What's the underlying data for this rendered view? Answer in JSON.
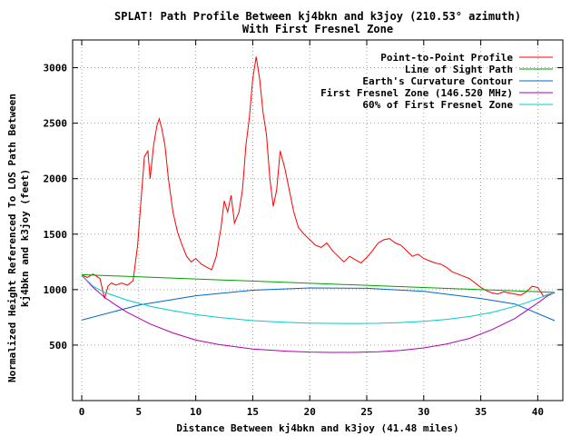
{
  "chart_data": {
    "type": "line",
    "title": "SPLAT! Path Profile Between kj4bkn and k3joy (210.53° azimuth)",
    "subtitle": "With First Fresnel Zone",
    "xlabel": "Distance Between kj4bkn and k3joy (41.48 miles)",
    "ylabel_lines": [
      "Normalized Height Referenced To LOS Path Between",
      "kj4bkn and k3joy (feet)"
    ],
    "xlim": [
      -0.8,
      42.2
    ],
    "ylim": [
      0,
      3250
    ],
    "xticks": [
      0,
      5,
      10,
      15,
      20,
      25,
      30,
      35,
      40
    ],
    "yticks": [
      500,
      1000,
      1500,
      2000,
      2500,
      3000
    ],
    "grid": true,
    "legend": "top-right",
    "series": [
      {
        "name": "Point-to-Point Profile",
        "color": "#ff0000",
        "points": [
          [
            0,
            1130
          ],
          [
            0.5,
            1110
          ],
          [
            1,
            1140
          ],
          [
            1.3,
            1120
          ],
          [
            1.6,
            1100
          ],
          [
            2,
            920
          ],
          [
            2.3,
            1030
          ],
          [
            2.6,
            1060
          ],
          [
            3,
            1040
          ],
          [
            3.5,
            1060
          ],
          [
            4,
            1040
          ],
          [
            4.5,
            1080
          ],
          [
            4.9,
            1400
          ],
          [
            5.2,
            1800
          ],
          [
            5.5,
            2200
          ],
          [
            5.8,
            2250
          ],
          [
            6,
            2000
          ],
          [
            6.3,
            2300
          ],
          [
            6.6,
            2480
          ],
          [
            6.8,
            2540
          ],
          [
            7,
            2460
          ],
          [
            7.3,
            2300
          ],
          [
            7.6,
            2000
          ],
          [
            8,
            1700
          ],
          [
            8.4,
            1520
          ],
          [
            8.8,
            1400
          ],
          [
            9.2,
            1300
          ],
          [
            9.6,
            1250
          ],
          [
            10,
            1280
          ],
          [
            10.5,
            1230
          ],
          [
            11,
            1200
          ],
          [
            11.4,
            1180
          ],
          [
            11.8,
            1300
          ],
          [
            12.2,
            1550
          ],
          [
            12.5,
            1800
          ],
          [
            12.8,
            1700
          ],
          [
            13.1,
            1850
          ],
          [
            13.4,
            1600
          ],
          [
            13.8,
            1700
          ],
          [
            14.1,
            1900
          ],
          [
            14.4,
            2300
          ],
          [
            14.7,
            2550
          ],
          [
            15,
            2900
          ],
          [
            15.3,
            3100
          ],
          [
            15.6,
            2900
          ],
          [
            15.9,
            2600
          ],
          [
            16.2,
            2400
          ],
          [
            16.5,
            2000
          ],
          [
            16.8,
            1750
          ],
          [
            17.1,
            1900
          ],
          [
            17.4,
            2250
          ],
          [
            17.8,
            2100
          ],
          [
            18.2,
            1900
          ],
          [
            18.6,
            1700
          ],
          [
            19,
            1560
          ],
          [
            19.5,
            1500
          ],
          [
            20,
            1450
          ],
          [
            20.5,
            1400
          ],
          [
            21,
            1380
          ],
          [
            21.5,
            1420
          ],
          [
            22,
            1350
          ],
          [
            22.5,
            1300
          ],
          [
            23,
            1250
          ],
          [
            23.5,
            1300
          ],
          [
            24,
            1270
          ],
          [
            24.5,
            1240
          ],
          [
            25,
            1290
          ],
          [
            25.5,
            1350
          ],
          [
            26,
            1420
          ],
          [
            26.5,
            1450
          ],
          [
            27,
            1460
          ],
          [
            27.5,
            1420
          ],
          [
            28,
            1400
          ],
          [
            28.5,
            1350
          ],
          [
            29,
            1300
          ],
          [
            29.5,
            1320
          ],
          [
            30,
            1280
          ],
          [
            30.5,
            1260
          ],
          [
            31,
            1240
          ],
          [
            31.5,
            1230
          ],
          [
            32,
            1200
          ],
          [
            32.5,
            1160
          ],
          [
            33,
            1140
          ],
          [
            33.5,
            1120
          ],
          [
            34,
            1100
          ],
          [
            34.5,
            1060
          ],
          [
            35,
            1020
          ],
          [
            35.5,
            990
          ],
          [
            36,
            970
          ],
          [
            36.5,
            960
          ],
          [
            37,
            980
          ],
          [
            37.5,
            970
          ],
          [
            38,
            960
          ],
          [
            38.5,
            950
          ],
          [
            39,
            980
          ],
          [
            39.5,
            1030
          ],
          [
            40,
            1020
          ],
          [
            40.5,
            940
          ],
          [
            41,
            960
          ],
          [
            41.48,
            970
          ]
        ]
      },
      {
        "name": "Line of Sight Path",
        "color": "#00a000",
        "points": [
          [
            0,
            1135
          ],
          [
            41.48,
            975
          ]
        ]
      },
      {
        "name": "Earth's Curvature Contour",
        "color": "#0066cc",
        "points": [
          [
            0,
            725
          ],
          [
            5,
            860
          ],
          [
            10,
            945
          ],
          [
            15,
            995
          ],
          [
            20,
            1015
          ],
          [
            25,
            1012
          ],
          [
            30,
            985
          ],
          [
            35,
            920
          ],
          [
            38,
            870
          ],
          [
            41.48,
            720
          ]
        ]
      },
      {
        "name": "First Fresnel Zone (146.520 MHz)",
        "color": "#b000b0",
        "points": [
          [
            0,
            1130
          ],
          [
            1,
            1020
          ],
          [
            2,
            930
          ],
          [
            3,
            860
          ],
          [
            4,
            795
          ],
          [
            6,
            690
          ],
          [
            8,
            610
          ],
          [
            10,
            545
          ],
          [
            12,
            505
          ],
          [
            15,
            465
          ],
          [
            18,
            445
          ],
          [
            20,
            437
          ],
          [
            22,
            434
          ],
          [
            24,
            435
          ],
          [
            26,
            440
          ],
          [
            28,
            452
          ],
          [
            30,
            475
          ],
          [
            32,
            510
          ],
          [
            34,
            560
          ],
          [
            36,
            640
          ],
          [
            38,
            740
          ],
          [
            39,
            810
          ],
          [
            40,
            880
          ],
          [
            40.8,
            940
          ],
          [
            41.48,
            975
          ]
        ]
      },
      {
        "name": "60% of First Fresnel Zone",
        "color": "#00cccc",
        "points": [
          [
            0,
            1130
          ],
          [
            1,
            1030
          ],
          [
            2,
            975
          ],
          [
            4,
            905
          ],
          [
            6,
            850
          ],
          [
            8,
            810
          ],
          [
            10,
            775
          ],
          [
            12,
            750
          ],
          [
            15,
            720
          ],
          [
            18,
            705
          ],
          [
            20,
            698
          ],
          [
            22,
            696
          ],
          [
            24,
            695
          ],
          [
            26,
            697
          ],
          [
            28,
            703
          ],
          [
            30,
            714
          ],
          [
            32,
            732
          ],
          [
            34,
            757
          ],
          [
            36,
            795
          ],
          [
            38,
            850
          ],
          [
            39,
            882
          ],
          [
            40,
            920
          ],
          [
            41.48,
            975
          ]
        ]
      }
    ]
  }
}
